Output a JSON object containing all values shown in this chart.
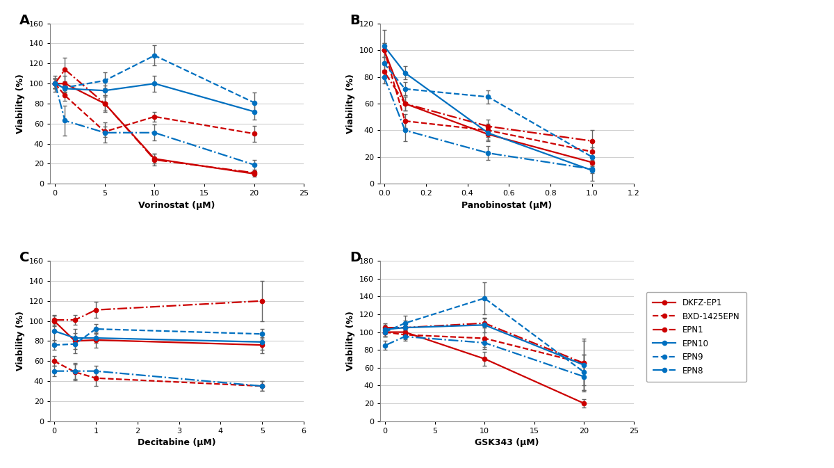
{
  "panel_A": {
    "title": "A",
    "xlabel": "Vorinostat (μM)",
    "ylabel": "Viability (%)",
    "xlim": [
      -0.5,
      25
    ],
    "ylim": [
      0,
      160
    ],
    "xticks": [
      0,
      5,
      10,
      15,
      20,
      25
    ],
    "yticks": [
      0,
      20,
      40,
      60,
      80,
      100,
      120,
      140,
      160
    ],
    "series": {
      "DKFZ-EP1": {
        "x": [
          0,
          1,
          5,
          10,
          20
        ],
        "y": [
          100,
          100,
          80,
          25,
          10
        ],
        "yerr": [
          5,
          8,
          7,
          5,
          3
        ],
        "color": "#cc0000",
        "linestyle": "solid"
      },
      "BXD-1425EPN": {
        "x": [
          0,
          1,
          5,
          10,
          20
        ],
        "y": [
          100,
          88,
          52,
          67,
          50
        ],
        "yerr": [
          5,
          5,
          5,
          5,
          8
        ],
        "color": "#cc0000",
        "linestyle": "dashed"
      },
      "EPN1": {
        "x": [
          0,
          1,
          5,
          10,
          20
        ],
        "y": [
          100,
          114,
          80,
          24,
          11
        ],
        "yerr": [
          8,
          12,
          8,
          6,
          2
        ],
        "color": "#cc0000",
        "linestyle": "dashdot"
      },
      "EPN10": {
        "x": [
          0,
          1,
          5,
          10,
          20
        ],
        "y": [
          100,
          95,
          93,
          100,
          72
        ],
        "yerr": [
          5,
          5,
          5,
          8,
          8
        ],
        "color": "#0070c0",
        "linestyle": "solid"
      },
      "EPN9": {
        "x": [
          0,
          1,
          5,
          10,
          20
        ],
        "y": [
          100,
          96,
          103,
          128,
          81
        ],
        "yerr": [
          5,
          5,
          8,
          10,
          10
        ],
        "color": "#0070c0",
        "linestyle": "dashed"
      },
      "EPN8": {
        "x": [
          0,
          1,
          5,
          10,
          20
        ],
        "y": [
          100,
          63,
          51,
          51,
          19
        ],
        "yerr": [
          5,
          15,
          10,
          8,
          5
        ],
        "color": "#0070c0",
        "linestyle": "dashdot"
      }
    }
  },
  "panel_B": {
    "title": "B",
    "xlabel": "Panobinostat (μM)",
    "ylabel": "Viability (%)",
    "xlim": [
      -0.02,
      1.2
    ],
    "ylim": [
      0,
      120
    ],
    "xticks": [
      0,
      0.2,
      0.4,
      0.6,
      0.8,
      1.0,
      1.2
    ],
    "yticks": [
      0,
      20,
      40,
      60,
      80,
      100,
      120
    ],
    "series": {
      "DKFZ-EP1": {
        "x": [
          0,
          0.1,
          0.5,
          1.0
        ],
        "y": [
          100,
          60,
          37,
          16
        ],
        "yerr": [
          5,
          5,
          5,
          3
        ],
        "color": "#cc0000",
        "linestyle": "solid"
      },
      "BXD-1425EPN": {
        "x": [
          0,
          0.1,
          0.5,
          1.0
        ],
        "y": [
          100,
          47,
          40,
          24
        ],
        "yerr": [
          5,
          5,
          5,
          3
        ],
        "color": "#cc0000",
        "linestyle": "dashed"
      },
      "EPN1": {
        "x": [
          0,
          0.1,
          0.5,
          1.0
        ],
        "y": [
          84,
          60,
          43,
          32
        ],
        "yerr": [
          5,
          5,
          5,
          8
        ],
        "color": "#cc0000",
        "linestyle": "dashdot"
      },
      "EPN10": {
        "x": [
          0,
          0.1,
          0.5,
          1.0
        ],
        "y": [
          103,
          83,
          38,
          10
        ],
        "yerr": [
          12,
          5,
          5,
          8
        ],
        "color": "#0070c0",
        "linestyle": "solid"
      },
      "EPN9": {
        "x": [
          0,
          0.1,
          0.5,
          1.0
        ],
        "y": [
          90,
          71,
          65,
          20
        ],
        "yerr": [
          5,
          5,
          5,
          3
        ],
        "color": "#0070c0",
        "linestyle": "dashed"
      },
      "EPN8": {
        "x": [
          0,
          0.1,
          0.5,
          1.0
        ],
        "y": [
          80,
          40,
          23,
          11
        ],
        "yerr": [
          5,
          8,
          5,
          3
        ],
        "color": "#0070c0",
        "linestyle": "dashdot"
      }
    }
  },
  "panel_C": {
    "title": "C",
    "xlabel": "Decitabine (μM)",
    "ylabel": "Viability (%)",
    "xlim": [
      -0.1,
      6
    ],
    "ylim": [
      0,
      160
    ],
    "xticks": [
      0,
      1,
      2,
      3,
      4,
      5,
      6
    ],
    "yticks": [
      0,
      20,
      40,
      60,
      80,
      100,
      120,
      140,
      160
    ],
    "series": {
      "DKFZ-EP1": {
        "x": [
          0,
          0.5,
          1,
          5
        ],
        "y": [
          100,
          80,
          81,
          76
        ],
        "yerr": [
          5,
          12,
          8,
          8
        ],
        "color": "#cc0000",
        "linestyle": "solid"
      },
      "BXD-1425EPN": {
        "x": [
          0,
          0.5,
          1,
          5
        ],
        "y": [
          101,
          101,
          111,
          120
        ],
        "yerr": [
          5,
          5,
          8,
          20
        ],
        "color": "#cc0000",
        "linestyle": "dashdot"
      },
      "EPN1": {
        "x": [
          0,
          0.5,
          1,
          5
        ],
        "y": [
          60,
          49,
          43,
          35
        ],
        "yerr": [
          5,
          8,
          8,
          5
        ],
        "color": "#cc0000",
        "linestyle": "dashed"
      },
      "EPN10": {
        "x": [
          0,
          0.5,
          1,
          5
        ],
        "y": [
          90,
          83,
          83,
          79
        ],
        "yerr": [
          12,
          5,
          5,
          8
        ],
        "color": "#0070c0",
        "linestyle": "solid"
      },
      "EPN9": {
        "x": [
          0,
          0.5,
          1,
          5
        ],
        "y": [
          76,
          77,
          92,
          87
        ],
        "yerr": [
          5,
          5,
          5,
          5
        ],
        "color": "#0070c0",
        "linestyle": "dashed"
      },
      "EPN8": {
        "x": [
          0,
          0.5,
          1,
          5
        ],
        "y": [
          50,
          50,
          50,
          35
        ],
        "yerr": [
          5,
          8,
          5,
          5
        ],
        "color": "#0070c0",
        "linestyle": "dashdot"
      }
    }
  },
  "panel_D": {
    "title": "D",
    "xlabel": "GSK343 (μM)",
    "ylabel": "Viability (%)",
    "xlim": [
      -0.5,
      25
    ],
    "ylim": [
      0,
      180
    ],
    "xticks": [
      0,
      5,
      10,
      15,
      20,
      25
    ],
    "yticks": [
      0,
      20,
      40,
      60,
      80,
      100,
      120,
      140,
      160,
      180
    ],
    "series": {
      "DKFZ-EP1": {
        "x": [
          0,
          2,
          10,
          20
        ],
        "y": [
          100,
          100,
          70,
          20
        ],
        "yerr": [
          5,
          5,
          8,
          5
        ],
        "color": "#cc0000",
        "linestyle": "solid"
      },
      "BXD-1425EPN": {
        "x": [
          0,
          2,
          10,
          20
        ],
        "y": [
          100,
          97,
          93,
          65
        ],
        "yerr": [
          5,
          5,
          12,
          10
        ],
        "color": "#cc0000",
        "linestyle": "dashed"
      },
      "EPN1": {
        "x": [
          0,
          2,
          10,
          20
        ],
        "y": [
          105,
          105,
          110,
          65
        ],
        "yerr": [
          5,
          5,
          5,
          25
        ],
        "color": "#cc0000",
        "linestyle": "dashdot"
      },
      "EPN10": {
        "x": [
          0,
          2,
          10,
          20
        ],
        "y": [
          103,
          105,
          108,
          63
        ],
        "yerr": [
          5,
          8,
          8,
          30
        ],
        "color": "#0070c0",
        "linestyle": "solid"
      },
      "EPN9": {
        "x": [
          0,
          2,
          10,
          20
        ],
        "y": [
          100,
          110,
          138,
          55
        ],
        "yerr": [
          5,
          8,
          18,
          20
        ],
        "color": "#0070c0",
        "linestyle": "dashed"
      },
      "EPN8": {
        "x": [
          0,
          2,
          10,
          20
        ],
        "y": [
          85,
          95,
          88,
          50
        ],
        "yerr": [
          5,
          5,
          5,
          15
        ],
        "color": "#0070c0",
        "linestyle": "dashdot"
      }
    }
  },
  "legend_order": [
    "DKFZ-EP1",
    "BXD-1425EPN",
    "EPN1",
    "EPN10",
    "EPN9",
    "EPN8"
  ],
  "background_color": "#ffffff",
  "plot_bg_color": "#ffffff",
  "grid_color": "#d0d0d0"
}
